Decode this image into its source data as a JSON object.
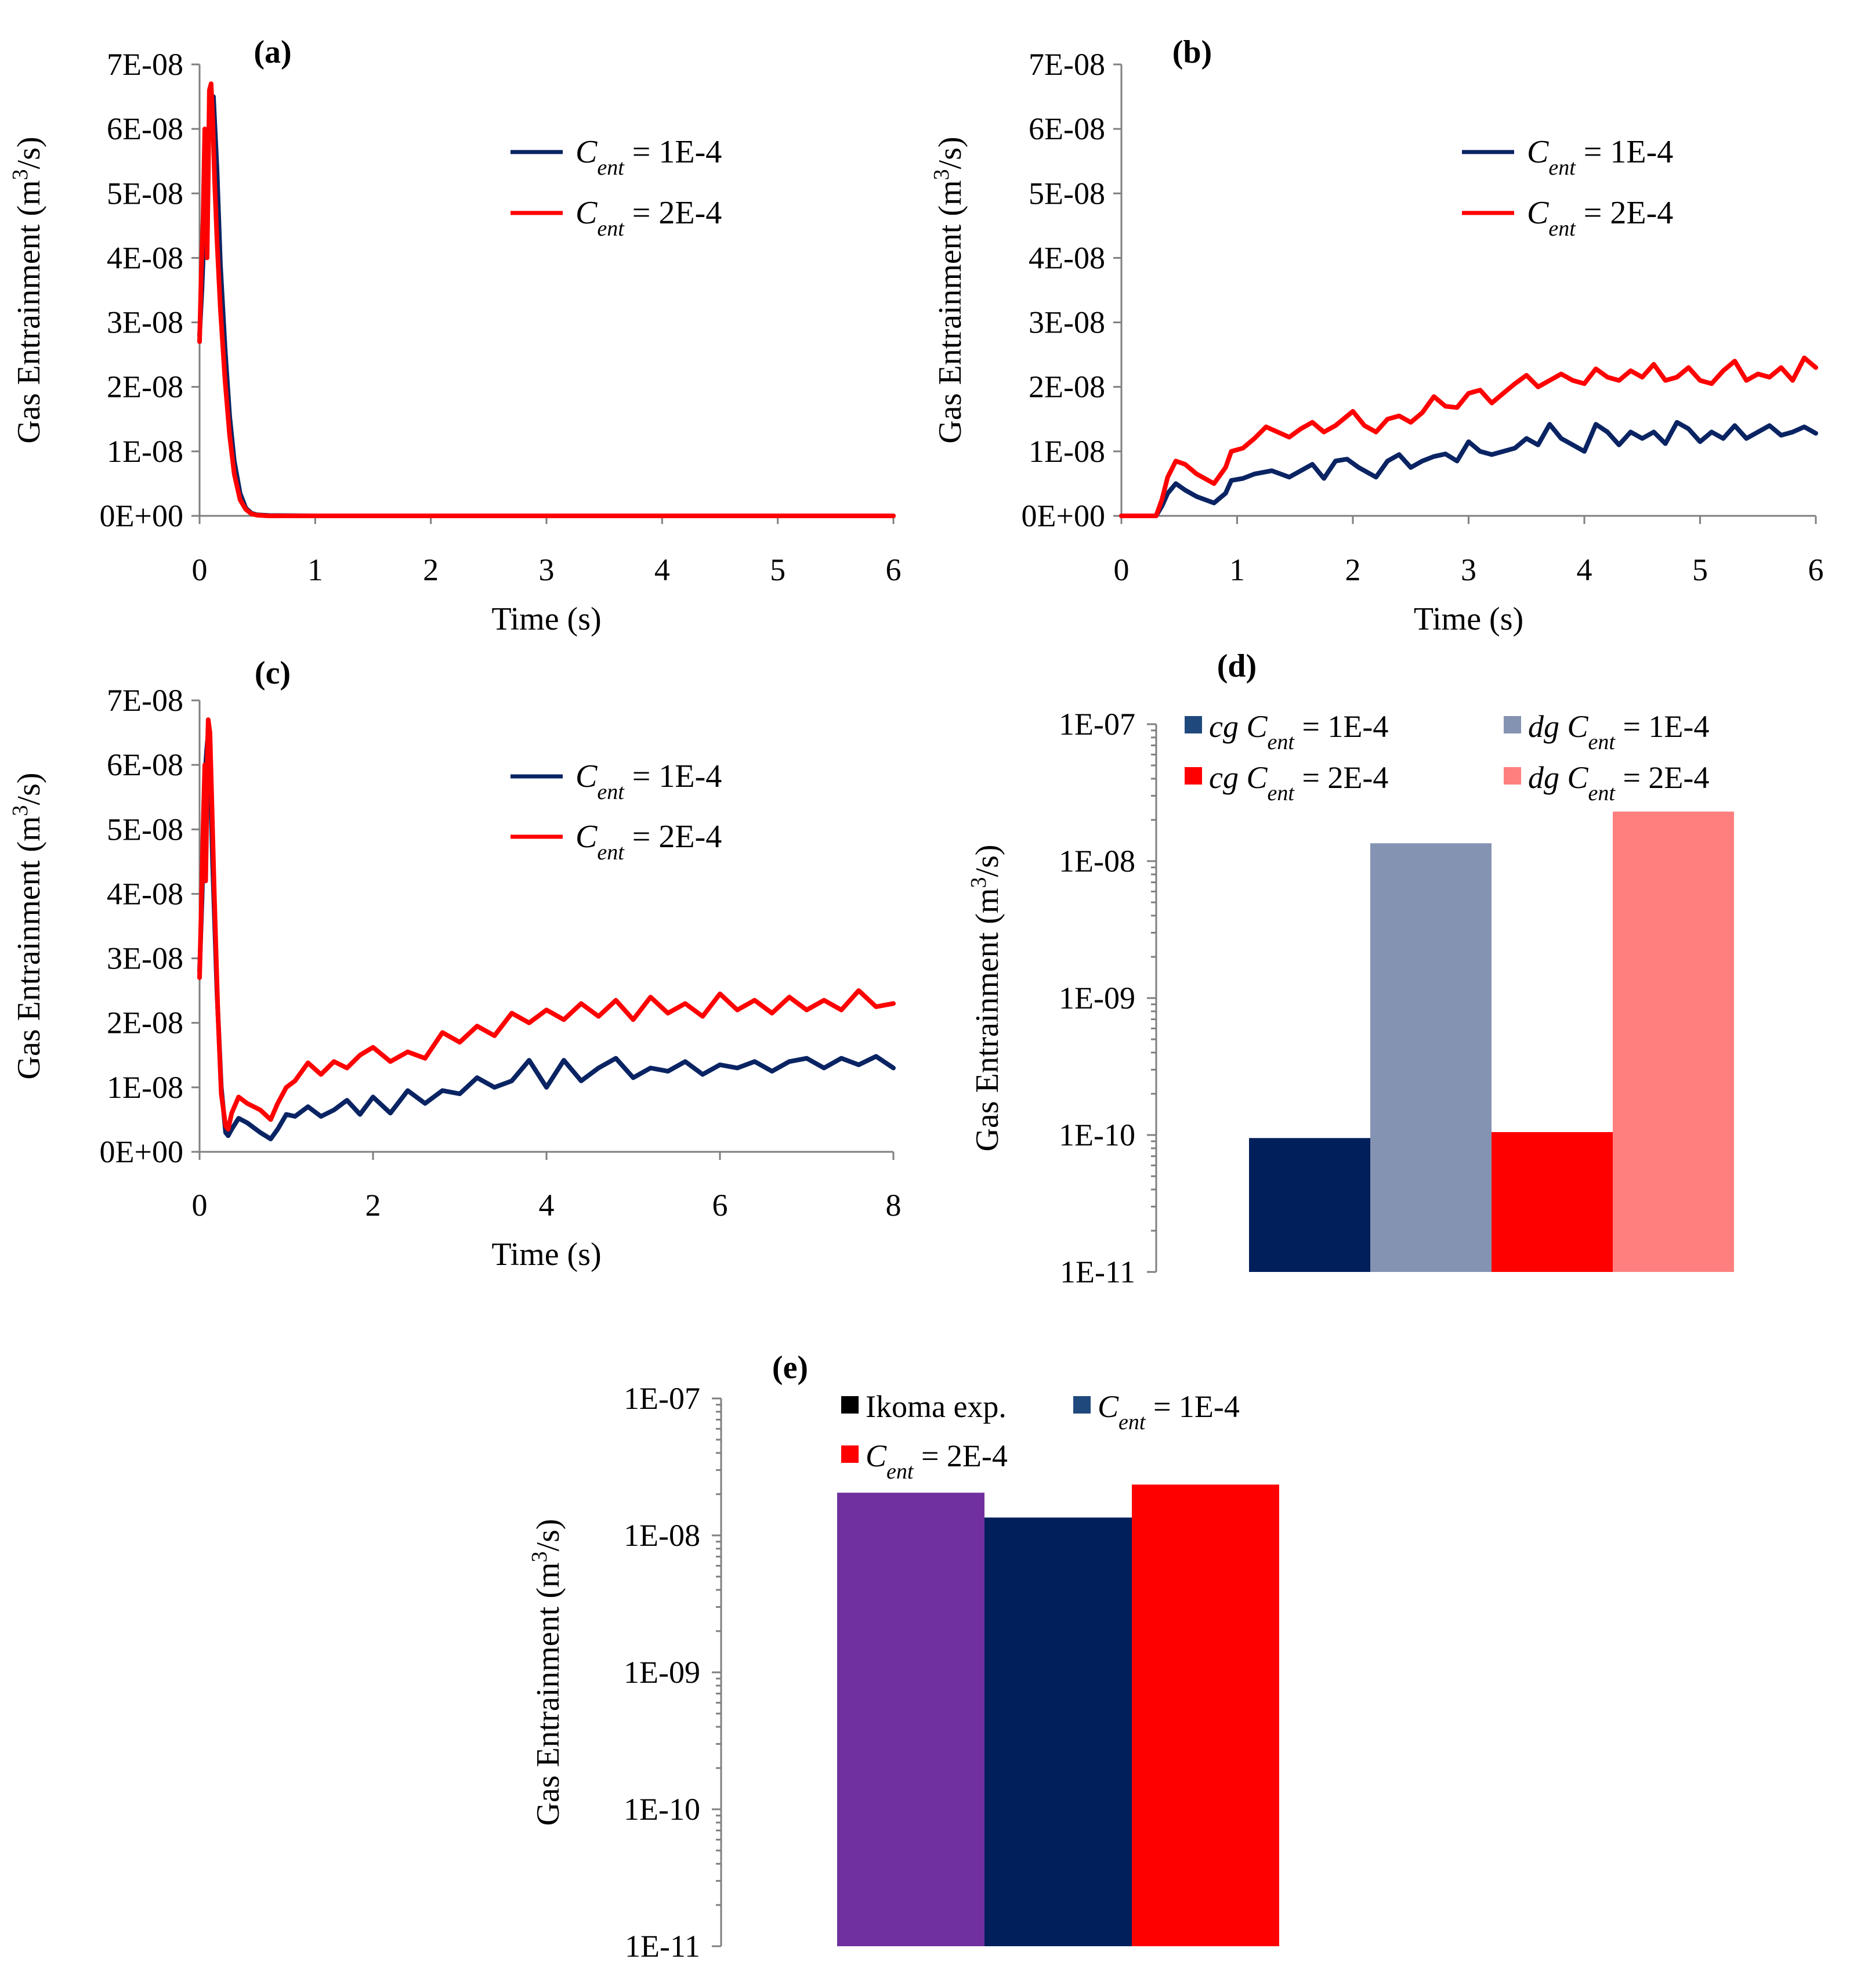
{
  "colors": {
    "navy": "#0a2463",
    "red": "#ff0000",
    "light_navy": "#8593b3",
    "light_red": "#ff7f7f",
    "purple": "#7030a0",
    "dark_navy": "#001f5b",
    "axis": "#7f7f7f",
    "legend_blue": "#1f497d",
    "legend_black": "#000000"
  },
  "chart_data": [
    {
      "panel": "(a)",
      "type": "line",
      "ylabel": "Gas Entrainment (m3/s)",
      "ylabel_parts": [
        "Gas Entrainment (m",
        "3",
        "/s)"
      ],
      "xlabel": "Time (s)",
      "xlim": [
        0,
        6
      ],
      "ylim": [
        0,
        7e-08
      ],
      "xticks": [
        "0",
        "1",
        "2",
        "3",
        "4",
        "5",
        "6"
      ],
      "yticks": [
        "0E+00",
        "1E-08",
        "2E-08",
        "3E-08",
        "4E-08",
        "5E-08",
        "6E-08",
        "7E-08"
      ],
      "legend_position": "top-right",
      "series": [
        {
          "name": "Cent = 1E-4",
          "name_parts": [
            "C",
            "ent",
            " = 1E-4"
          ],
          "color": "#0a2463",
          "x": [
            0,
            0.02,
            0.04,
            0.06,
            0.08,
            0.1,
            0.12,
            0.15,
            0.18,
            0.22,
            0.26,
            0.3,
            0.35,
            0.4,
            0.45,
            0.5,
            0.6,
            1,
            2,
            3,
            4,
            5,
            6
          ],
          "y": [
            2.8e-08,
            3.5e-08,
            4.4e-08,
            5.6e-08,
            6e-08,
            6.4e-08,
            6.5e-08,
            5.4e-08,
            3.9e-08,
            2.6e-08,
            1.55e-08,
            8.5e-09,
            3.5e-09,
            1.2e-09,
            4e-10,
            1.5e-10,
            5e-11,
            0,
            0,
            0,
            0,
            0,
            0
          ]
        },
        {
          "name": "Cent = 2E-4",
          "name_parts": [
            "C",
            "ent",
            " = 2E-4"
          ],
          "color": "#ff0000",
          "x": [
            0,
            0.015,
            0.03,
            0.045,
            0.055,
            0.065,
            0.075,
            0.085,
            0.1,
            0.115,
            0.13,
            0.15,
            0.18,
            0.22,
            0.26,
            0.3,
            0.35,
            0.4,
            0.45,
            0.5,
            0.6,
            1,
            2,
            3,
            4,
            5,
            6
          ],
          "y": [
            2.7e-08,
            3.8e-08,
            4.6e-08,
            6e-08,
            5.5e-08,
            4e-08,
            5.2e-08,
            6.6e-08,
            6.7e-08,
            6.1e-08,
            5.2e-08,
            4.3e-08,
            3.2e-08,
            2.1e-08,
            1.25e-08,
            6.5e-09,
            2.5e-09,
            1e-09,
            3e-10,
            1e-10,
            0,
            0,
            0,
            0,
            0,
            0,
            0
          ]
        }
      ]
    },
    {
      "panel": "(b)",
      "type": "line",
      "ylabel": "Gas Entrainment (m3/s)",
      "ylabel_parts": [
        "Gas Entrainment (m",
        "3",
        "/s)"
      ],
      "xlabel": "Time (s)",
      "xlim": [
        0,
        6
      ],
      "ylim": [
        0,
        7e-08
      ],
      "xticks": [
        "0",
        "1",
        "2",
        "3",
        "4",
        "5",
        "6"
      ],
      "yticks": [
        "0E+00",
        "1E-08",
        "2E-08",
        "3E-08",
        "4E-08",
        "5E-08",
        "6E-08",
        "7E-08"
      ],
      "legend_position": "top-right",
      "series": [
        {
          "name": "Cent = 1E-4",
          "name_parts": [
            "C",
            "ent",
            " = 1E-4"
          ],
          "color": "#0a2463",
          "x": [
            0,
            0.3,
            0.35,
            0.4,
            0.47,
            0.55,
            0.65,
            0.8,
            0.9,
            0.95,
            1.05,
            1.15,
            1.3,
            1.45,
            1.55,
            1.65,
            1.75,
            1.85,
            1.95,
            2.05,
            2.2,
            2.3,
            2.4,
            2.5,
            2.6,
            2.7,
            2.8,
            2.9,
            3.0,
            3.1,
            3.2,
            3.3,
            3.4,
            3.5,
            3.6,
            3.7,
            3.8,
            3.9,
            4.0,
            4.1,
            4.2,
            4.3,
            4.4,
            4.5,
            4.6,
            4.7,
            4.8,
            4.9,
            5.0,
            5.1,
            5.2,
            5.3,
            5.4,
            5.5,
            5.6,
            5.7,
            5.8,
            5.9,
            6.0
          ],
          "y": [
            0,
            0,
            1.5e-09,
            3.5e-09,
            5e-09,
            4e-09,
            3e-09,
            2e-09,
            3.5e-09,
            5.5e-09,
            5.8e-09,
            6.5e-09,
            7e-09,
            6e-09,
            7e-09,
            8e-09,
            5.8e-09,
            8.5e-09,
            8.8e-09,
            7.5e-09,
            6e-09,
            8.5e-09,
            9.5e-09,
            7.5e-09,
            8.5e-09,
            9.2e-09,
            9.6e-09,
            8.5e-09,
            1.15e-08,
            1e-08,
            9.5e-09,
            1e-08,
            1.05e-08,
            1.2e-08,
            1.1e-08,
            1.42e-08,
            1.2e-08,
            1.1e-08,
            1e-08,
            1.42e-08,
            1.3e-08,
            1.1e-08,
            1.3e-08,
            1.2e-08,
            1.3e-08,
            1.12e-08,
            1.45e-08,
            1.35e-08,
            1.15e-08,
            1.3e-08,
            1.2e-08,
            1.4e-08,
            1.2e-08,
            1.3e-08,
            1.4e-08,
            1.25e-08,
            1.3e-08,
            1.38e-08,
            1.28e-08
          ]
        },
        {
          "name": "Cent = 2E-4",
          "name_parts": [
            "C",
            "ent",
            " = 2E-4"
          ],
          "color": "#ff0000",
          "x": [
            0,
            0.3,
            0.35,
            0.4,
            0.47,
            0.55,
            0.65,
            0.8,
            0.9,
            0.95,
            1.05,
            1.15,
            1.25,
            1.35,
            1.45,
            1.55,
            1.65,
            1.75,
            1.85,
            2.0,
            2.1,
            2.2,
            2.3,
            2.4,
            2.5,
            2.6,
            2.7,
            2.8,
            2.9,
            3.0,
            3.1,
            3.2,
            3.3,
            3.4,
            3.5,
            3.6,
            3.7,
            3.8,
            3.9,
            4.0,
            4.1,
            4.2,
            4.3,
            4.4,
            4.5,
            4.6,
            4.7,
            4.8,
            4.9,
            5.0,
            5.1,
            5.2,
            5.3,
            5.4,
            5.5,
            5.6,
            5.7,
            5.8,
            5.9,
            6.0
          ],
          "y": [
            0,
            0,
            2.5e-09,
            6e-09,
            8.5e-09,
            8e-09,
            6.5e-09,
            5e-09,
            7.5e-09,
            1e-08,
            1.05e-08,
            1.2e-08,
            1.38e-08,
            1.3e-08,
            1.22e-08,
            1.35e-08,
            1.45e-08,
            1.3e-08,
            1.4e-08,
            1.62e-08,
            1.4e-08,
            1.3e-08,
            1.5e-08,
            1.55e-08,
            1.45e-08,
            1.6e-08,
            1.85e-08,
            1.7e-08,
            1.68e-08,
            1.9e-08,
            1.95e-08,
            1.75e-08,
            1.9e-08,
            2.05e-08,
            2.18e-08,
            2e-08,
            2.1e-08,
            2.2e-08,
            2.1e-08,
            2.05e-08,
            2.28e-08,
            2.15e-08,
            2.1e-08,
            2.25e-08,
            2.15e-08,
            2.35e-08,
            2.1e-08,
            2.15e-08,
            2.3e-08,
            2.1e-08,
            2.05e-08,
            2.25e-08,
            2.4e-08,
            2.1e-08,
            2.2e-08,
            2.15e-08,
            2.3e-08,
            2.1e-08,
            2.45e-08,
            2.3e-08
          ]
        }
      ]
    },
    {
      "panel": "(c)",
      "type": "line",
      "ylabel": "Gas Entrainment (m3/s)",
      "ylabel_parts": [
        "Gas Entrainment (m",
        "3",
        "/s)"
      ],
      "xlabel": "Time (s)",
      "xlim": [
        0,
        8
      ],
      "ylim": [
        0,
        7e-08
      ],
      "xticks": [
        "0",
        "2",
        "4",
        "6",
        "8"
      ],
      "yticks": [
        "0E+00",
        "1E-08",
        "2E-08",
        "3E-08",
        "4E-08",
        "5E-08",
        "6E-08",
        "7E-08"
      ],
      "legend_position": "top-right",
      "series": [
        {
          "name": "Cent = 1E-4",
          "name_parts": [
            "C",
            "ent",
            " = 1E-4"
          ],
          "color": "#0a2463",
          "x": [
            0,
            0.03,
            0.06,
            0.08,
            0.1,
            0.12,
            0.15,
            0.2,
            0.25,
            0.3,
            0.33,
            0.37,
            0.45,
            0.55,
            0.7,
            0.82,
            0.9,
            1.0,
            1.1,
            1.25,
            1.4,
            1.55,
            1.7,
            1.85,
            2.0,
            2.2,
            2.4,
            2.6,
            2.8,
            3.0,
            3.2,
            3.4,
            3.6,
            3.8,
            4.0,
            4.2,
            4.4,
            4.6,
            4.8,
            5.0,
            5.2,
            5.4,
            5.6,
            5.8,
            6.0,
            6.2,
            6.4,
            6.6,
            6.8,
            7.0,
            7.2,
            7.4,
            7.6,
            7.8,
            8.0
          ],
          "y": [
            2.8e-08,
            4e-08,
            5.8e-08,
            6.2e-08,
            6.5e-08,
            6e-08,
            4.5e-08,
            2.5e-08,
            1e-08,
            3e-09,
            2.5e-09,
            3.5e-09,
            5.2e-09,
            4.5e-09,
            3e-09,
            2e-09,
            3.5e-09,
            5.8e-09,
            5.5e-09,
            7e-09,
            5.5e-09,
            6.5e-09,
            8e-09,
            5.8e-09,
            8.5e-09,
            6e-09,
            9.5e-09,
            7.5e-09,
            9.5e-09,
            9e-09,
            1.15e-08,
            1e-08,
            1.1e-08,
            1.42e-08,
            1e-08,
            1.42e-08,
            1.1e-08,
            1.3e-08,
            1.45e-08,
            1.15e-08,
            1.3e-08,
            1.25e-08,
            1.4e-08,
            1.2e-08,
            1.35e-08,
            1.3e-08,
            1.4e-08,
            1.25e-08,
            1.4e-08,
            1.45e-08,
            1.3e-08,
            1.45e-08,
            1.35e-08,
            1.48e-08,
            1.3e-08
          ]
        },
        {
          "name": "Cent = 2E-4",
          "name_parts": [
            "C",
            "ent",
            " = 2E-4"
          ],
          "color": "#ff0000",
          "x": [
            0,
            0.02,
            0.04,
            0.06,
            0.07,
            0.08,
            0.09,
            0.1,
            0.12,
            0.14,
            0.17,
            0.21,
            0.25,
            0.3,
            0.33,
            0.37,
            0.45,
            0.55,
            0.7,
            0.82,
            0.9,
            1.0,
            1.1,
            1.25,
            1.4,
            1.55,
            1.7,
            1.85,
            2.0,
            2.2,
            2.4,
            2.6,
            2.8,
            3.0,
            3.2,
            3.4,
            3.6,
            3.8,
            4.0,
            4.2,
            4.4,
            4.6,
            4.8,
            5.0,
            5.2,
            5.4,
            5.6,
            5.8,
            6.0,
            6.2,
            6.4,
            6.6,
            6.8,
            7.0,
            7.2,
            7.4,
            7.6,
            7.8,
            8.0
          ],
          "y": [
            2.7e-08,
            3.8e-08,
            5e-08,
            6e-08,
            4.2e-08,
            5e-08,
            6.2e-08,
            6.7e-08,
            6.5e-08,
            5.5e-08,
            4e-08,
            2.2e-08,
            9e-09,
            4e-09,
            3.5e-09,
            6e-09,
            8.5e-09,
            7.5e-09,
            6.5e-09,
            5e-09,
            7.5e-09,
            1e-08,
            1.1e-08,
            1.38e-08,
            1.2e-08,
            1.4e-08,
            1.3e-08,
            1.5e-08,
            1.62e-08,
            1.4e-08,
            1.55e-08,
            1.45e-08,
            1.85e-08,
            1.7e-08,
            1.95e-08,
            1.8e-08,
            2.15e-08,
            2e-08,
            2.2e-08,
            2.05e-08,
            2.3e-08,
            2.1e-08,
            2.35e-08,
            2.05e-08,
            2.4e-08,
            2.15e-08,
            2.3e-08,
            2.1e-08,
            2.45e-08,
            2.2e-08,
            2.35e-08,
            2.15e-08,
            2.4e-08,
            2.2e-08,
            2.35e-08,
            2.2e-08,
            2.5e-08,
            2.25e-08,
            2.3e-08
          ]
        }
      ]
    },
    {
      "panel": "(d)",
      "type": "bar",
      "ylabel": "Gas Entrainment (m3/s)",
      "ylabel_parts": [
        "Gas Entrainment (m",
        "3",
        "/s)"
      ],
      "yscale": "log",
      "ylim": [
        1e-11,
        1e-07
      ],
      "yticks": [
        "1E-11",
        "1E-10",
        "1E-09",
        "1E-08",
        "1E-07"
      ],
      "legend_position": "top",
      "categories": [
        "cg Cent = 1E-4",
        "dg Cent = 1E-4",
        "cg Cent = 2E-4",
        "dg Cent = 2E-4"
      ],
      "series": [
        {
          "name": "cg Cent = 1E-4",
          "name_parts": [
            "cg",
            "C",
            "ent",
            " = 1E-4"
          ],
          "value": 9.5e-11,
          "color": "#001f5b",
          "legend_color": "#1f497d"
        },
        {
          "name": "dg Cent = 1E-4",
          "name_parts": [
            "dg",
            "C",
            "ent",
            " = 1E-4"
          ],
          "value": 1.35e-08,
          "color": "#8593b3",
          "legend_color": "#8593b3"
        },
        {
          "name": "cg Cent = 2E-4",
          "name_parts": [
            "cg",
            "C",
            "ent",
            " = 2E-4"
          ],
          "value": 1.05e-10,
          "color": "#ff0000",
          "legend_color": "#ff0000"
        },
        {
          "name": "dg Cent = 2E-4",
          "name_parts": [
            "dg",
            "C",
            "ent",
            " = 2E-4"
          ],
          "value": 2.3e-08,
          "color": "#ff7f7f",
          "legend_color": "#ff7f7f"
        }
      ]
    },
    {
      "panel": "(e)",
      "type": "bar",
      "ylabel": "Gas Entrainment (m3/s)",
      "ylabel_parts": [
        "Gas Entrainment (m",
        "3",
        "/s)"
      ],
      "yscale": "log",
      "ylim": [
        1e-11,
        1e-07
      ],
      "yticks": [
        "1E-11",
        "1E-10",
        "1E-09",
        "1E-08",
        "1E-07"
      ],
      "legend_position": "top",
      "categories": [
        "Ikoma exp.",
        "Cent = 1E-4",
        "Cent = 2E-4"
      ],
      "series": [
        {
          "name": "Ikoma exp.",
          "name_parts": [
            "Ikoma exp."
          ],
          "value": 2.05e-08,
          "color": "#7030a0",
          "legend_color": "#000000"
        },
        {
          "name": "Cent = 1E-4",
          "name_parts": [
            "C",
            "ent",
            " = 1E-4"
          ],
          "value": 1.35e-08,
          "color": "#001f5b",
          "legend_color": "#1f497d"
        },
        {
          "name": "Cent = 2E-4",
          "name_parts": [
            "C",
            "ent",
            " = 2E-4"
          ],
          "value": 2.35e-08,
          "color": "#ff0000",
          "legend_color": "#ff0000"
        }
      ]
    }
  ]
}
